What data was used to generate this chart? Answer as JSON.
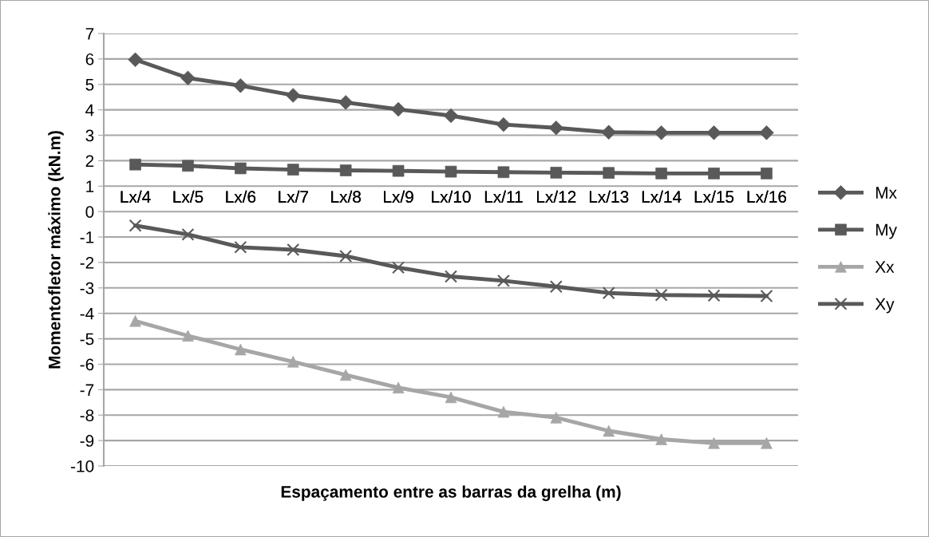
{
  "chart_data": {
    "type": "line",
    "xlabel": "Espaçamento entre as barras da grelha (m)",
    "ylabel": "Momentofletor máximo (kN.m)",
    "categories": [
      "Lx/4",
      "Lx/5",
      "Lx/6",
      "Lx/7",
      "Lx/8",
      "Lx/9",
      "Lx/10",
      "Lx/11",
      "Lx/12",
      "Lx/13",
      "Lx/14",
      "Lx/15",
      "Lx/16"
    ],
    "series": [
      {
        "name": "Mx",
        "color": "#595959",
        "marker": "diamond",
        "values": [
          5.97,
          5.25,
          4.95,
          4.57,
          4.29,
          4.02,
          3.77,
          3.42,
          3.29,
          3.12,
          3.1,
          3.1,
          3.1
        ]
      },
      {
        "name": "My",
        "color": "#595959",
        "marker": "square",
        "values": [
          1.85,
          1.8,
          1.7,
          1.65,
          1.62,
          1.6,
          1.57,
          1.55,
          1.53,
          1.52,
          1.5,
          1.5,
          1.5
        ]
      },
      {
        "name": "Xx",
        "color": "#a6a6a6",
        "marker": "triangle",
        "values": [
          -4.3,
          -4.88,
          -5.42,
          -5.9,
          -6.42,
          -6.92,
          -7.3,
          -7.87,
          -8.1,
          -8.62,
          -8.95,
          -9.1,
          -9.1
        ]
      },
      {
        "name": "Xy",
        "color": "#595959",
        "marker": "cross",
        "values": [
          -0.55,
          -0.9,
          -1.4,
          -1.5,
          -1.75,
          -2.2,
          -2.55,
          -2.72,
          -2.95,
          -3.2,
          -3.28,
          -3.3,
          -3.32
        ]
      }
    ],
    "ylim": [
      -10,
      7
    ],
    "yticks": [
      -10,
      -9,
      -8,
      -7,
      -6,
      -5,
      -4,
      -3,
      -2,
      -1,
      0,
      1,
      2,
      3,
      4,
      5,
      6,
      7
    ],
    "grid": "y",
    "legend": "right",
    "line_style": "solid"
  }
}
